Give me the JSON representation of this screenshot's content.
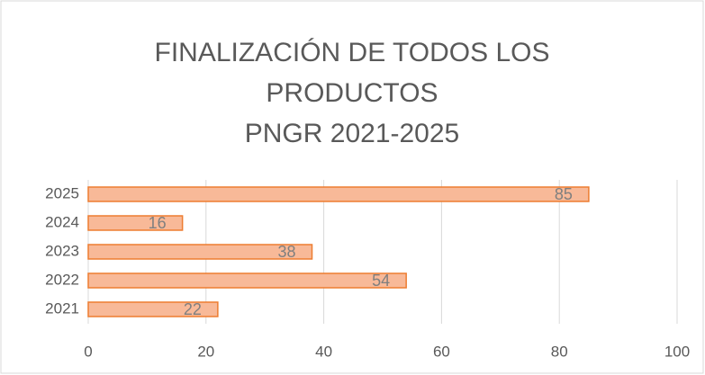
{
  "chart_data": {
    "type": "bar",
    "orientation": "horizontal",
    "title": [
      "FINALIZACIÓN DE TODOS LOS",
      "PRODUCTOS",
      "PNGR 2021-2025"
    ],
    "categories": [
      "2021",
      "2022",
      "2023",
      "2024",
      "2025"
    ],
    "values": [
      22,
      54,
      38,
      16,
      85
    ],
    "color": "#f8b998",
    "edge_color": "#ed7d31",
    "xlim": [
      0,
      100
    ],
    "xticks": [
      0,
      20,
      40,
      60,
      80,
      100
    ],
    "grid": true
  }
}
